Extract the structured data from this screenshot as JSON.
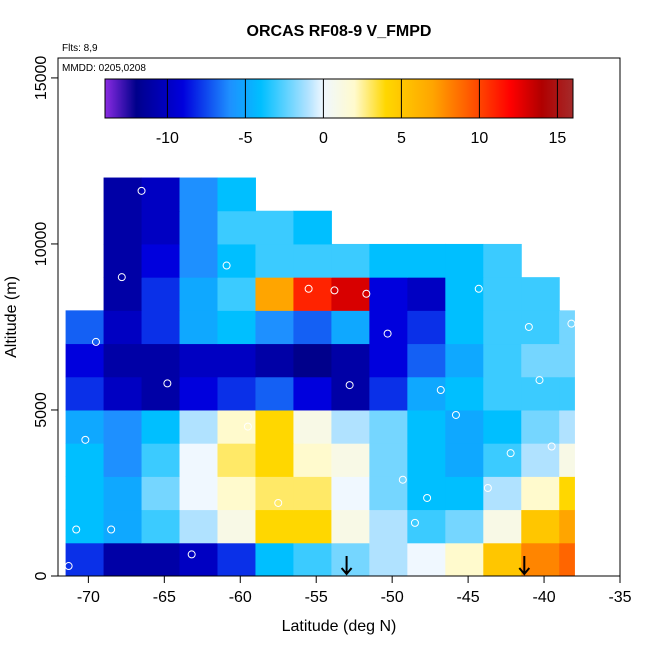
{
  "chart_data": {
    "type": "heatmap",
    "title": "ORCAS RF08-9 V_FMPD",
    "annotations": [
      "Flts: 8,9",
      "MMDD: 0205,0208"
    ],
    "x_label": "Latitude (deg N)",
    "y_label": "Altitude (m)",
    "xlim": [
      -72,
      -35
    ],
    "ylim": [
      0,
      15600
    ],
    "xticks": [
      -70,
      -65,
      -60,
      -55,
      -50,
      -45,
      -40,
      -35
    ],
    "yticks": [
      0,
      5000,
      10000,
      15000
    ],
    "x_edges": [
      -71.5,
      -69,
      -66.5,
      -64,
      -61.5,
      -59,
      -56.5,
      -54,
      -51.5,
      -49,
      -46.5,
      -44,
      -41.5,
      -39,
      -38
    ],
    "y_edges": [
      0,
      1000,
      2000,
      3000,
      4000,
      5000,
      6000,
      7000,
      8000,
      9000,
      10000,
      11000,
      12000
    ],
    "z": [
      [
        -8,
        -11,
        -11,
        -10,
        -8,
        -4,
        -3,
        -2,
        -1,
        0,
        2,
        5,
        8,
        9
      ],
      [
        -4,
        -5,
        -3,
        -1,
        1,
        4,
        4,
        1,
        -1,
        -3,
        -2,
        1,
        5,
        7
      ],
      [
        -4,
        -5,
        -2,
        0,
        2,
        3,
        3,
        0,
        -2,
        -4,
        -4,
        -1,
        2,
        4
      ],
      [
        -4,
        -6,
        -3,
        0,
        3,
        4,
        2,
        1,
        -2,
        -4,
        -5,
        -3,
        -1,
        1
      ],
      [
        -5,
        -6,
        -4,
        -1,
        2,
        4,
        1,
        -1,
        -2,
        -4,
        -5,
        -4,
        -2,
        -1
      ],
      [
        -8,
        -10,
        -11,
        -9,
        -8,
        -7,
        -9,
        -11,
        -8,
        -5,
        -4,
        -3,
        -3,
        -3
      ],
      [
        -9,
        -11,
        -11,
        -10,
        -10,
        -11,
        -12,
        -11,
        -9,
        -7,
        -5,
        -3,
        -2,
        -2
      ],
      [
        -7,
        -10,
        -8,
        -5,
        -4,
        -6,
        -7,
        -5,
        -9,
        -8,
        -4,
        -3,
        -3,
        -2
      ],
      [
        null,
        -11,
        -8,
        -5,
        -3,
        7,
        11,
        13,
        -9,
        -10,
        -4,
        -3,
        -3,
        null
      ],
      [
        null,
        -11,
        -9,
        -6,
        -4,
        -3,
        -3,
        -3,
        -4,
        -4,
        -4,
        -3,
        null,
        null
      ],
      [
        null,
        -11,
        -10,
        -6,
        -3,
        -3,
        -4,
        null,
        null,
        null,
        null,
        null,
        null,
        null
      ],
      [
        null,
        -11,
        -10,
        -6,
        -4,
        null,
        null,
        null,
        null,
        null,
        null,
        null,
        null,
        null
      ]
    ],
    "points": {
      "x": [
        -71.3,
        -70.8,
        -70.2,
        -69.5,
        -68.5,
        -67.8,
        -66.5,
        -64.8,
        -63.2,
        -60.9,
        -59.5,
        -57.5,
        -55.5,
        -53.8,
        -52.8,
        -51.7,
        -50.3,
        -49.3,
        -48.5,
        -47.7,
        -46.8,
        -45.8,
        -44.3,
        -43.7,
        -42.2,
        -41.0,
        -40.3,
        -39.5,
        -38.2
      ],
      "y": [
        300,
        1400,
        4100,
        7050,
        1400,
        9000,
        11600,
        5800,
        650,
        9350,
        4500,
        2200,
        8650,
        8600,
        5750,
        8500,
        7300,
        2900,
        1600,
        2350,
        5600,
        4850,
        8650,
        2650,
        3700,
        7500,
        5900,
        3900,
        7600
      ]
    },
    "arrows_x": [
      -53,
      -41.3
    ],
    "colorbar_lim": [
      -14,
      16
    ],
    "colorbar_ticks": [
      -10,
      -5,
      0,
      5,
      10,
      15
    ],
    "colorscale": [
      {
        "value": -14,
        "color": "#8a2be2"
      },
      {
        "value": -12,
        "color": "#00008b"
      },
      {
        "value": -9,
        "color": "#0000dd"
      },
      {
        "value": -6,
        "color": "#1e90ff"
      },
      {
        "value": -4,
        "color": "#00bfff"
      },
      {
        "value": -1,
        "color": "#b0e2ff"
      },
      {
        "value": 0,
        "color": "#f0f8ff"
      },
      {
        "value": 2,
        "color": "#fffacd"
      },
      {
        "value": 4,
        "color": "#ffd700"
      },
      {
        "value": 7,
        "color": "#ffa500"
      },
      {
        "value": 10,
        "color": "#ff4500"
      },
      {
        "value": 12,
        "color": "#ff0000"
      },
      {
        "value": 14,
        "color": "#b00000"
      },
      {
        "value": 16,
        "color": "#a52a2a"
      }
    ],
    "point_color": "#ffffff",
    "arrow_color": "#000000"
  }
}
